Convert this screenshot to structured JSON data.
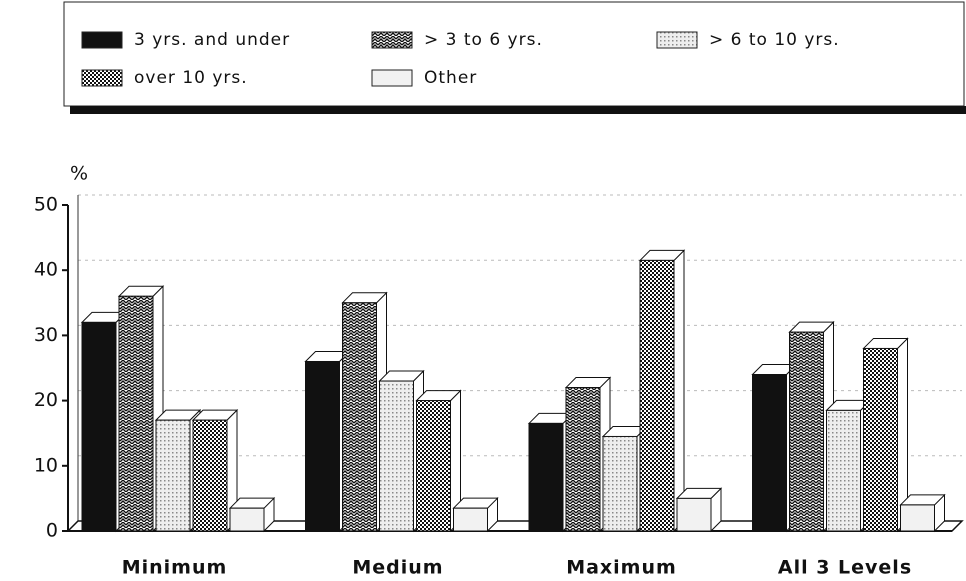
{
  "chart_data": {
    "type": "bar3d",
    "y_label": "%",
    "categories": [
      "Minimum",
      "Medium",
      "Maximum",
      "All 3 Levels"
    ],
    "series": [
      {
        "name": "3 yrs. and under",
        "color": "#111111",
        "pattern": "solid",
        "values": [
          32,
          26,
          16.5,
          24
        ]
      },
      {
        "name": "> 3 to 6 yrs.",
        "color": "#555555",
        "pattern": "zigzag",
        "values": [
          36,
          35,
          22,
          30.5
        ]
      },
      {
        "name": "> 6 to 10 yrs.",
        "color": "#cfcfcf",
        "pattern": "dots",
        "values": [
          17,
          23,
          14.5,
          18.5
        ]
      },
      {
        "name": "over 10 yrs.",
        "color": "#444444",
        "pattern": "checker",
        "values": [
          17,
          20,
          41.5,
          28
        ]
      },
      {
        "name": "Other",
        "color": "#f2f2f2",
        "pattern": "solid",
        "values": [
          3.5,
          3.5,
          5,
          4
        ]
      }
    ],
    "ylim": [
      0,
      50
    ],
    "yticks": [
      0,
      10,
      20,
      30,
      40,
      50
    ],
    "grid": true
  }
}
